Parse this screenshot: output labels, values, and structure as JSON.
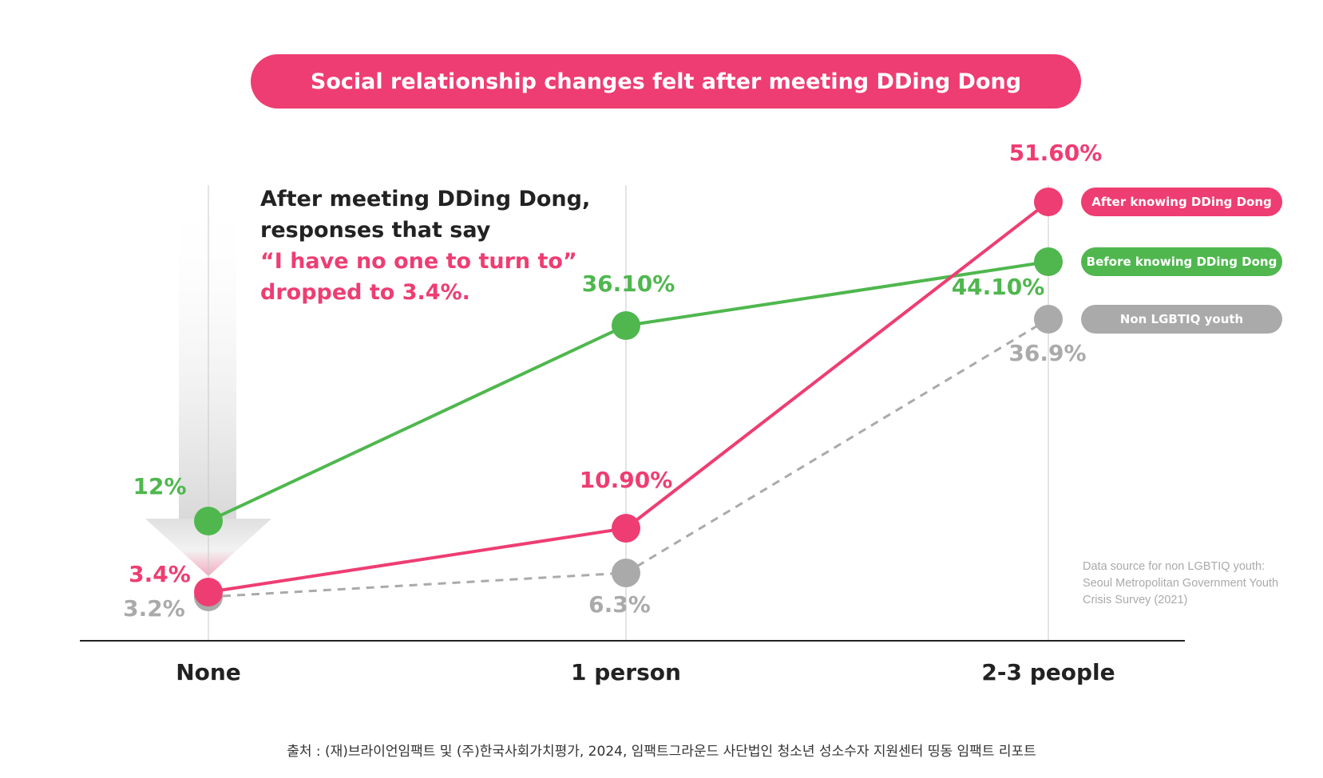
{
  "chart_data": {
    "type": "line",
    "title": "Social relationship changes felt after meeting DDing Dong",
    "categories": [
      "None",
      "1 person",
      "2-3 people"
    ],
    "ylim": [
      0,
      55
    ],
    "grid": false,
    "series": [
      {
        "name": "After knowing DDing Dong",
        "color": "#ee3d72",
        "style": "solid",
        "values": [
          3.4,
          10.9,
          51.6
        ],
        "labels": [
          "3.4%",
          "10.90%",
          "51.60%"
        ]
      },
      {
        "name": "Before knowing DDing Dong",
        "color": "#4fb74e",
        "style": "solid",
        "values": [
          12,
          36.1,
          44.1
        ],
        "labels": [
          "12%",
          "36.10%",
          "44.10%"
        ]
      },
      {
        "name": "Non LGBTIQ youth",
        "color": "#aaaaaa",
        "style": "dashed",
        "values": [
          3.2,
          6.3,
          36.9
        ],
        "labels": [
          "3.2%",
          "6.3%",
          "36.9%"
        ]
      }
    ],
    "legend_position": "right",
    "annotation": {
      "line1": "After meeting DDing Dong,",
      "line2": "responses that say",
      "line3": "“I have no one to turn to”",
      "line4": "dropped to 3.4%."
    },
    "note": "Data source for non LGBTIQ youth: Seoul Metropolitan Government Youth Crisis Survey (2021)",
    "source": "출처 : (재)브라이언임팩트 및 (주)한국사회가치평가, 2024, 임팩트그라운드 사단법인 청소년 성소수자 지원센터 띵동 임팩트 리포트"
  }
}
